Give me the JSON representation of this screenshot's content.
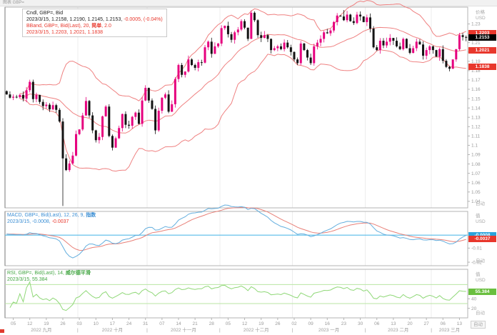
{
  "window": {
    "title": "图表 GBP="
  },
  "price_pane": {
    "legend": {
      "line1": "Cndl, GBP=, Bid",
      "line2_black": "2023/3/15, 1.2158, 1.2190, 1.2145, 1.2153,",
      "line2_red": " -0.0005, (-0.04%)",
      "line3_prefix": "BBand, GBP=, Bid(Last), 20, ",
      "line3_param": "简单",
      "line3_suffix": ", 2.0",
      "line4": "2023/3/15, 1.2203, 1.2021, 1.1838"
    },
    "axis": {
      "unit1": "价格",
      "unit2": "USD",
      "auto": "自动"
    },
    "badges": [
      {
        "name": "badge-bband-upper",
        "value": 1.2203,
        "label": "1.2203",
        "type": "red"
      },
      {
        "name": "badge-last-price",
        "value": 1.2153,
        "label": "1.2153",
        "type": "black"
      },
      {
        "name": "badge-bband-middle",
        "value": 1.2021,
        "label": "1.2021",
        "type": "red"
      },
      {
        "name": "badge-bband-lower",
        "value": 1.1838,
        "label": "1.1838",
        "type": "red"
      }
    ]
  },
  "macd_pane": {
    "legend": {
      "line1_prefix": "MACD, GBP=, Bid(Last), 12, 26, 9, ",
      "line1_param": "指数",
      "line2_blue": "2023/3/15, -0.0008,",
      "line2_red": " -0.0037"
    },
    "axis": {
      "unit1": "值",
      "unit2": "USD",
      "auto": "自动"
    },
    "badges": [
      {
        "name": "badge-macd-value",
        "value": -0.0008,
        "label": "-0.0008",
        "type": "blue"
      },
      {
        "name": "badge-macd-signal",
        "value": -0.0037,
        "label": "-0.0037",
        "type": "red"
      }
    ]
  },
  "rsi_pane": {
    "legend": {
      "line1_prefix": "RSI, GBP=, Bid(Last), 14, ",
      "line1_param": "威尔德平滑",
      "line2": "2023/3/15, 55.384"
    },
    "axis": {
      "unit1": "值",
      "unit2": "USD",
      "auto": "自动"
    },
    "badges": [
      {
        "name": "badge-rsi-value",
        "value": 55.384,
        "label": "55.384",
        "type": "green"
      }
    ]
  },
  "x_axis": {
    "auto": "自动"
  },
  "chart_data": {
    "type": "candlestick",
    "symbol": "GBP=",
    "interval": "daily",
    "x_range": [
      "2022-09-01",
      "2023-03-15"
    ],
    "price_axis": {
      "min": 1.033,
      "max": 1.248,
      "ticks": [
        1.23,
        1.22,
        1.21,
        1.2,
        1.19,
        1.18,
        1.17,
        1.16,
        1.15,
        1.14,
        1.13,
        1.12,
        1.11,
        1.1,
        1.09,
        1.08,
        1.07,
        1.06,
        1.05,
        1.04
      ]
    },
    "closes": [
      1.1545,
      1.151,
      1.152,
      1.1515,
      1.154,
      1.15,
      1.159,
      1.168,
      1.1495,
      1.154,
      1.1465,
      1.142,
      1.1435,
      1.1385,
      1.143,
      1.138,
      1.1255,
      1.086,
      1.0735,
      1.0805,
      1.089,
      1.112,
      1.117,
      1.132,
      1.1475,
      1.132,
      1.116,
      1.1055,
      1.109,
      1.131,
      1.1415,
      1.11,
      1.0975,
      1.1075,
      1.1185,
      1.1335,
      1.122,
      1.121,
      1.1305,
      1.135,
      1.123,
      1.148,
      1.1615,
      1.148,
      1.139,
      1.116,
      1.137,
      1.151,
      1.1545,
      1.136,
      1.144,
      1.171,
      1.186,
      1.1755,
      1.179,
      1.192,
      1.186,
      1.183,
      1.189,
      1.1885,
      1.205,
      1.211,
      1.198,
      1.206,
      1.209,
      1.2255,
      1.228,
      1.219,
      1.213,
      1.221,
      1.224,
      1.233,
      1.226,
      1.214,
      1.242,
      1.234,
      1.218,
      1.215,
      1.218,
      1.214,
      1.202,
      1.204,
      1.206,
      1.203,
      1.21,
      1.205,
      1.2,
      1.192,
      1.188,
      1.209,
      1.202,
      1.194,
      1.188,
      1.206,
      1.21,
      1.214,
      1.221,
      1.22,
      1.223,
      1.232,
      1.239,
      1.238,
      1.234,
      1.24,
      1.233,
      1.231,
      1.24,
      1.238,
      1.232,
      1.237,
      1.225,
      1.205,
      1.202,
      1.212,
      1.207,
      1.211,
      1.215,
      1.212,
      1.206,
      1.203,
      1.214,
      1.204,
      1.199,
      1.204,
      1.211,
      1.208,
      1.196,
      1.202,
      1.206,
      1.202,
      1.195,
      1.203,
      1.1905,
      1.184,
      1.182,
      1.192,
      1.203,
      1.218,
      1.216,
      1.2153
    ],
    "wick_overrides": {
      "17": {
        "low": 1.035,
        "high": 1.129
      },
      "74": {
        "high": 1.2446
      },
      "102": {
        "high": 1.2448
      }
    },
    "bollinger": {
      "period": 20,
      "ma_type": "简单",
      "stdev": 2.0,
      "last": {
        "upper": 1.2203,
        "middle": 1.2021,
        "lower": 1.1838
      }
    },
    "macd": {
      "fast": 12,
      "slow": 26,
      "signal": 9,
      "ma_type": "指数",
      "last": -0.0008,
      "signal_last": -0.0037,
      "axis": {
        "min": -0.0225,
        "max": 0.016,
        "ticks": [
          -0.01,
          -0.02
        ]
      }
    },
    "rsi": {
      "period": 14,
      "smoothing": "威尔德平滑",
      "last": 55.384,
      "bands": [
        70,
        30
      ],
      "axis": {
        "min": 0,
        "max": 102,
        "ticks": [
          40,
          20
        ]
      }
    },
    "x_axis": {
      "week_indices": [
        2,
        7,
        12,
        17,
        22,
        27,
        32,
        37,
        42,
        47,
        52,
        57,
        62,
        67,
        72,
        77,
        82,
        87,
        92,
        97,
        102,
        107,
        112,
        117,
        122,
        127,
        132,
        137
      ],
      "week_labels": [
        "05",
        "12",
        "19",
        "26",
        "03",
        "10",
        "17",
        "24",
        "31",
        "07",
        "14",
        "21",
        "28",
        "05",
        "12",
        "19",
        "26",
        "02",
        "09",
        "16",
        "23",
        "30",
        "06",
        "13",
        "20",
        "27",
        "06",
        "13"
      ],
      "months": [
        {
          "label": "2022 九月",
          "start": 0
        },
        {
          "label": "2022 十月",
          "start": 22
        },
        {
          "label": "2022 十一月",
          "start": 43
        },
        {
          "label": "2022 十二月",
          "start": 65
        },
        {
          "label": "2023 一月",
          "start": 87
        },
        {
          "label": "2023 二月",
          "start": 109
        },
        {
          "label": "2023 三月",
          "start": 129
        }
      ]
    },
    "colors": {
      "up": "#e6007e",
      "down": "#141414",
      "bband": "#ef8181",
      "macd_line": "#63aede",
      "macd_signal": "#e88078",
      "macd_level": "#55bbe8",
      "rsi_line": "#90d878",
      "rsi_band": "#b9e6a3",
      "grid": "#ededed",
      "border": "#b3b3b3",
      "tick_text": "#9a9a9a"
    }
  }
}
